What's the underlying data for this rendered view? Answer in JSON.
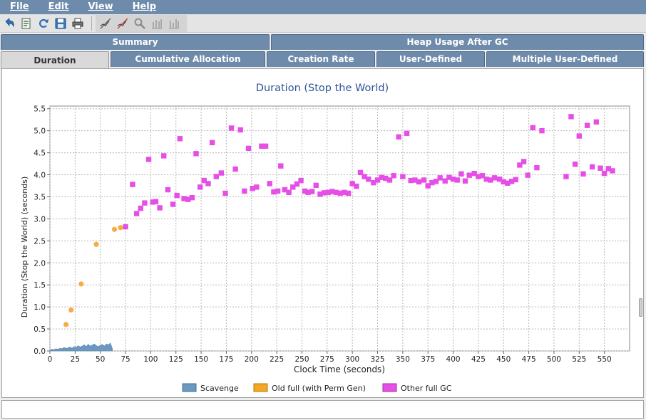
{
  "menu": {
    "file": "File",
    "edit": "Edit",
    "view": "View",
    "help": "Help"
  },
  "toolbar": {
    "icons": [
      "undo-icon",
      "export-icon",
      "refresh-icon",
      "save-icon",
      "print-icon",
      "zoom-region-icon",
      "zoom-reset-icon",
      "zoom-icon",
      "bar-chart-icon",
      "bar-chart-2-icon"
    ]
  },
  "tabs": {
    "row1": [
      "Summary",
      "Heap Usage After GC"
    ],
    "row2": [
      "Duration",
      "Cumulative Allocation",
      "Creation Rate",
      "User-Defined",
      "Multiple User-Defined"
    ],
    "active": "Duration"
  },
  "colors": {
    "menubar": "#6f8bab",
    "scavenge": "#6b97c0",
    "old_full": "#f5ac42",
    "other_full": "#e64fe6"
  },
  "chart_data": {
    "type": "scatter",
    "title": "Duration (Stop the World)",
    "xlabel": "Clock Time  (seconds)",
    "ylabel": "Duration (Stop the World)  (seconds)",
    "xlim": [
      0,
      575
    ],
    "ylim": [
      0,
      5.56
    ],
    "grid": true,
    "legend_position": "bottom",
    "x_ticks": [
      "0",
      "25",
      "50",
      "75",
      "100",
      "125",
      "150",
      "175",
      "200",
      "225",
      "250",
      "275",
      "300",
      "325",
      "350",
      "375",
      "400",
      "425",
      "450",
      "475",
      "500",
      "525",
      "550"
    ],
    "y_ticks": [
      "0.0",
      "0.5",
      "1.0",
      "1.5",
      "2.0",
      "2.5",
      "3.0",
      "3.5",
      "4.0",
      "4.5",
      "5.0",
      "5.5"
    ],
    "series": [
      {
        "name": "Scavenge",
        "type": "area",
        "x": [
          0,
          2,
          4,
          6,
          8,
          10,
          12,
          14,
          16,
          18,
          20,
          22,
          24,
          26,
          28,
          30,
          32,
          34,
          36,
          38,
          40,
          42,
          44,
          46,
          48,
          50,
          52,
          54,
          56,
          58,
          60,
          62
        ],
        "y": [
          0.02,
          0.04,
          0.03,
          0.05,
          0.04,
          0.06,
          0.05,
          0.08,
          0.06,
          0.07,
          0.09,
          0.06,
          0.1,
          0.08,
          0.12,
          0.09,
          0.11,
          0.14,
          0.1,
          0.15,
          0.11,
          0.13,
          0.16,
          0.12,
          0.1,
          0.13,
          0.15,
          0.11,
          0.16,
          0.14,
          0.18,
          0.05
        ]
      },
      {
        "name": "Old full (with Perm Gen)",
        "type": "circle",
        "x": [
          16,
          21,
          31,
          46,
          64,
          70
        ],
        "y": [
          0.6,
          0.93,
          1.52,
          2.42,
          2.76,
          2.8
        ]
      },
      {
        "name": "Other full GC",
        "type": "square",
        "x": [
          75,
          82,
          86,
          90,
          94,
          98,
          102,
          105,
          109,
          113,
          117,
          122,
          126,
          129,
          133,
          137,
          141,
          145,
          149,
          153,
          157,
          161,
          165,
          170,
          174,
          180,
          184,
          189,
          193,
          197,
          201,
          205,
          210,
          214,
          218,
          222,
          226,
          229,
          233,
          237,
          241,
          245,
          249,
          253,
          256,
          260,
          264,
          268,
          272,
          276,
          280,
          284,
          288,
          292,
          296,
          300,
          304,
          308,
          312,
          316,
          321,
          325,
          329,
          333,
          337,
          341,
          346,
          350,
          354,
          358,
          362,
          366,
          371,
          375,
          379,
          383,
          387,
          392,
          396,
          400,
          404,
          408,
          412,
          416,
          421,
          425,
          429,
          433,
          437,
          441,
          446,
          450,
          454,
          458,
          462,
          466,
          470,
          474,
          479,
          483,
          488,
          512,
          517,
          521,
          525,
          529,
          533,
          538,
          542,
          546,
          550,
          554,
          558
        ],
        "y": [
          2.82,
          3.78,
          3.12,
          3.24,
          3.36,
          4.35,
          3.38,
          3.39,
          3.25,
          4.43,
          3.66,
          3.33,
          3.53,
          4.82,
          3.46,
          3.44,
          3.48,
          4.48,
          3.72,
          3.87,
          3.8,
          4.73,
          3.96,
          4.04,
          3.58,
          5.06,
          4.13,
          5.02,
          3.63,
          4.6,
          3.69,
          3.72,
          4.65,
          4.65,
          3.8,
          3.61,
          3.63,
          4.2,
          3.66,
          3.6,
          3.72,
          3.79,
          3.87,
          3.63,
          3.6,
          3.62,
          3.76,
          3.56,
          3.59,
          3.6,
          3.62,
          3.6,
          3.58,
          3.6,
          3.58,
          3.8,
          3.74,
          4.05,
          3.96,
          3.9,
          3.82,
          3.88,
          3.94,
          3.92,
          3.88,
          3.98,
          4.86,
          3.96,
          4.94,
          3.87,
          3.88,
          3.84,
          3.88,
          3.75,
          3.82,
          3.85,
          3.93,
          3.86,
          3.94,
          3.9,
          3.88,
          4.02,
          3.86,
          3.99,
          4.03,
          3.96,
          3.98,
          3.9,
          3.88,
          3.93,
          3.9,
          3.84,
          3.81,
          3.85,
          3.89,
          4.22,
          4.3,
          3.99,
          5.07,
          4.16,
          5.0,
          3.96,
          5.32,
          4.24,
          4.88,
          4.02,
          5.12,
          4.18,
          5.2,
          4.15,
          4.03,
          4.14,
          4.09
        ]
      }
    ]
  }
}
